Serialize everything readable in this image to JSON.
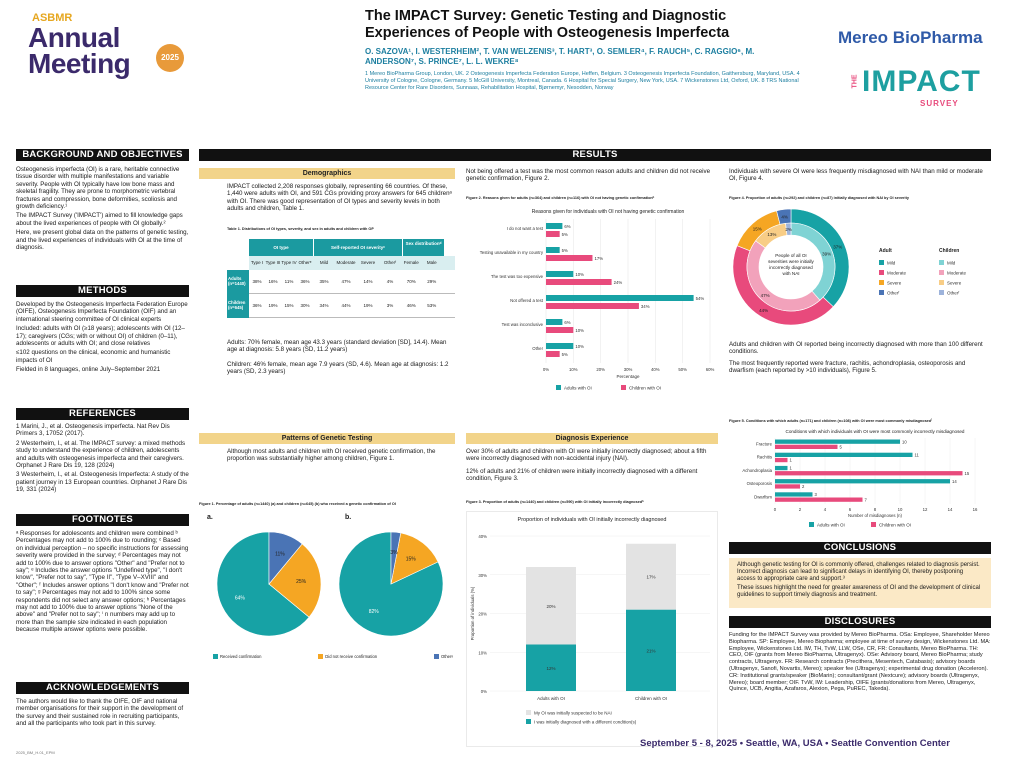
{
  "logo": {
    "org": "ASBMR",
    "line1": "Annual",
    "line2": "Meeting",
    "year": "2025"
  },
  "header": {
    "title_line1": "The IMPACT Survey: Genetic Testing and Diagnostic",
    "title_line2": "Experiences of People with Osteogenesis Imperfecta",
    "authors_line1": "O. SAZOVA¹, I. WESTERHEIM², T. VAN WELZENIS³, T. HART³, O. SEMLER⁴, F. RAUCH⁵, C. RAGGIO⁶, M.",
    "authors_line2": "ANDERSON⁷, S. PRINCE⁷, L. L. WEKRE⁸",
    "affiliations": "1 Mereo BioPharma Group, London, UK. 2 Osteogenesis Imperfecta Federation Europe, Heffen, Belgium. 3 Osteogenesis Imperfecta Foundation, Gaithersburg, Maryland, USA. 4 University of Cologne, Cologne, Germany. 5 McGill University, Montreal, Canada. 6 Hospital for Special Surgery, New York, USA. 7 Wickenstones Ltd, Oxford, UK. 8 TRS National Resource Center for Rare Disorders, Sunnaas, Rehabilitation Hospital, Bjørnemyr, Nesodden, Norway"
  },
  "brand": {
    "company": "Mereo BioPharma",
    "the": "THE",
    "impact": "IMPACT",
    "survey": "SURVEY"
  },
  "col1": {
    "bg_title": "BACKGROUND AND OBJECTIVES",
    "bg_p1": "Osteogenesis imperfecta (OI) is a rare, heritable connective tissue disorder with multiple manifestations and variable severity. People with OI typically have low bone mass and skeletal fragility. They are prone to morphometric vertebral fractures and compression, bone deformities, scoliosis and growth deficiency.¹",
    "bg_p2": "The IMPACT Survey ('IMPACT') aimed to fill knowledge gaps about the lived experiences of people with OI globally.²",
    "bg_p3": "Here, we present global data on the patterns of genetic testing, and the lived experiences of individuals with OI at the time of diagnosis.",
    "methods_title": "METHODS",
    "m_p1": "Developed by the Osteogenesis Imperfecta Federation Europe (OIFE), Osteogenesis Imperfecta Foundation (OIF) and an international steering committee of OI clinical experts",
    "m_p2": "Included: adults with OI (≥18 years); adolescents with OI (12–17); caregivers (CGs; with or without OI) of children (0–11), adolescents or adults with OI; and close relatives",
    "m_p3": "≤102 questions on the clinical, economic and humanistic impacts of OI",
    "m_p4": "Fielded in 8 languages, online July–September 2021",
    "ref_title": "REFERENCES",
    "ref1": "1 Marini, J., et al. Osteogenesis imperfecta. Nat Rev Dis Primers 3, 17052 (2017).",
    "ref2": "2 Westerheim, I., et al. The IMPACT survey: a mixed methods study to understand the experience of children, adolescents and adults with osteogenesis imperfecta and their caregivers. Orphanet J Rare Dis 19, 128 (2024)",
    "ref3": "3 Westerheim, I., et al. Osteogenesis Imperfecta: A study of the patient journey in 13 European countries. Orphanet J Rare Dis 19, 331 (2024)",
    "fn_title": "FOOTNOTES",
    "fn_text": "ᵃ Responses for adolescents and children were combined ᵇ Percentages may not add to 100% due to rounding; ᶜ Based on individual perception – no specific instructions for assessing severity were provided in the survey; ᵈ Percentages may not add to 100% due to answer options \"Other\" and \"Prefer not to say\"; ᵉ Includes the answer options \"Undefined type\", \"I don't know\", \"Prefer not to say\", \"Type II\", \"Type V–XVIII\" and \"Other\"; ᶠ Includes answer options \"I don't know and \"Prefer not to say\"; ᵍ Percentages may not add to 100% since some respondents did not select any answer options; ʰ Percentages may not add to 100% due to answer options \"None of the above\" and \"Prefer not to say\"; ⁱ n numbers may add up to more than the sample size indicated in each population because multiple answer options were possible.",
    "ack_title": "ACKNOWLEDGEMENTS",
    "ack_text": "The authors would like to thank the OIFE, OIF and national member organisations for their support in the development of the survey and their sustained role in recruiting participants, and all the participants who took part in this survey."
  },
  "results_title": "RESULTS",
  "demo": {
    "title": "Demographics",
    "p1": "IMPACT collected 2,208 responses globally, representing 66 countries. Of these, 1,440 were adults with OI, and 591 CGs providing proxy answers for 645 childrenᵃ with OI. There was good representation of OI types and severity levels in both adults and children, Table 1.",
    "table_caption": "Table 1. Distributions of OI types, severity, and sex in adults and children with OIᵇ",
    "group_headers": [
      "OI type",
      "Self-reported OI severityᶜ",
      "Sex distributionᵈ"
    ],
    "sub_headers": [
      "Type I",
      "Type III",
      "Type IV",
      "Otherᵉ",
      "Mild",
      "Moderate",
      "Severe",
      "Otherᶠ",
      "Female",
      "Male"
    ],
    "rows": [
      {
        "label": "Adults (n=1440)",
        "values": [
          "38%",
          "16%",
          "11%",
          "36%",
          "35%",
          "47%",
          "14%",
          "4%",
          "70%",
          "29%"
        ]
      },
      {
        "label": "Children (n=645)",
        "values": [
          "36%",
          "19%",
          "15%",
          "30%",
          "34%",
          "44%",
          "19%",
          "3%",
          "46%",
          "53%"
        ]
      }
    ],
    "p2": "Adults: 70% female, mean age 43.3 years (standard deviation [SD], 14.4). Mean age at diagnosis: 5.8 years (SD, 11.2 years)",
    "p3": "Children: 46% female, mean age 7.9 years (SD, 4.6). Mean age at diagnosis: 1.2 years (SD, 2.3 years)"
  },
  "patterns": {
    "title": "Patterns of Genetic Testing",
    "p1": "Although most adults and children with OI received genetic confirmation, the proportion was substantially higher among children, Figure 1.",
    "fig_caption": "Figure 1. Percentage of adults (n=1440) (a) and children (n=645) (b) who received a genetic confirmation of OI",
    "label_a": "a.",
    "label_b": "b.",
    "legend": [
      "Received confirmation",
      "Did not receive confirmation",
      "Otherᵍ"
    ]
  },
  "fig2": {
    "intro": "Not being offered a test was the most common reason adults and children did not receive genetic confirmation, Figure 2.",
    "caption": "Figure 2. Reasons given for adults (n=364) and children (n=116) with OI not having genetic confirmationʰ",
    "legend": [
      "Adults with OI",
      "Children with OI"
    ]
  },
  "diag": {
    "title": "Diagnosis Experience",
    "p1": "Over 30% of adults and children with OI were initially incorrectly diagnosed; about a fifth were incorrectly diagnosed with non-accidental injury (NAI).",
    "p2": "12% of adults and 21% of children were initially incorrectly diagnosed with a different condition, Figure 3.",
    "fig_caption": "Figure 3. Proportion of adults (n=1440) and children (n=590) with OI initially incorrectly diagnosedʰ",
    "legend": [
      "My OI was initially suspected to be NAI",
      "I was initially diagnosed with a different condition(s)"
    ]
  },
  "fig4": {
    "intro": "Individuals with severe OI were less frequently misdiagnosed with NAI than mild or moderate OI, Figure 4.",
    "caption": "Figure 4. Proportion of adults (n=292) and children (n=87) initially diagnosed with NAI by OI severity",
    "center": "People of all OI severities were initially incorrectly diagnosed with NAI",
    "adult_head": "Adult",
    "child_head": "Children",
    "legend": [
      "Mild",
      "Moderate",
      "Severe",
      "Otherᶠ"
    ]
  },
  "fig5": {
    "p1": "Adults and children with OI reported being incorrectly diagnosed with more than 100 different conditions.",
    "p2": "The most frequently reported were fracture, rachitis, achondroplasia, osteoporosis and dwarfism (each reported by >10 individuals), Figure 5.",
    "caption": "Figure 5. Conditions with which adults (n=171) and children (n=108) with OI were most commonly misdiagnosedⁱ",
    "legend": [
      "Adults with OI",
      "Children with OI"
    ]
  },
  "conclusions": {
    "title": "CONCLUSIONS",
    "p1": "Although genetic testing for OI is commonly offered, challenges related to diagnosis persist. Incorrect diagnosis can lead to significant delays in identifying OI, thereby postponing access to appropriate care and support.³",
    "p2": "These issues highlight the need for greater awareness of OI and the development of clinical guidelines to support timely diagnosis and treatment."
  },
  "disclosures": {
    "title": "DISCLOSURES",
    "text": "Funding for the IMPACT Survey was provided by Mereo BioPharma. OSa: Employee, Shareholder Mereo Biopharma. SP: Employee, Mereo Biopharma; employee at time of survey design, Wickenstones Ltd. MA: Employee, Wickenstones Ltd. IW, TH, TvW, LLW, OSe, CR, FR: Consultants, Mereo BioPharma. TH: CEO, OIF (grants from Mereo BioPharma, Ultragenyx). OSe: Advisory board, Mereo BioPharma; study contracts, Ultragenyx. FR: Research contracts (Precithera, Mesentech, Catabasis); advisory boards (Ultragenyx, Sanofi, Novartis, Mereo); speaker fee (Ultragenyx); experimental drug donation (Acceleron). CR: Institutional grants/speaker (BioMarin); consultant/grant (Nextcure); advisory boards (Ultragenyx, Mereo); board member; OIF. TvW, IW: Leadership, OIFE (grants/donations from Mereo, Ultragenyx, Quince, UCB, Angitia, Azafaros, Alexion, Pega, PuREC, Takeda)."
  },
  "footer": {
    "date": "September 5 - 8, 2025",
    "city": "Seattle, WA, USA",
    "venue": "Seattle Convention Center",
    "code": "2025_BM_H.01_EPM"
  },
  "colors": {
    "teal": "#17a2a5",
    "pink": "#e84a7c",
    "orange": "#f5a623",
    "blue": "#4a74b5",
    "grey": "#e3e3e3",
    "gold": "#f2d48a"
  },
  "chart_data": [
    {
      "type": "pie",
      "id": "fig1a",
      "title": "a.",
      "slices": [
        {
          "label": "Received confirmation",
          "value": 64
        },
        {
          "label": "Did not receive confirmation",
          "value": 25
        },
        {
          "label": "Other",
          "value": 11
        }
      ]
    },
    {
      "type": "pie",
      "id": "fig1b",
      "title": "b.",
      "slices": [
        {
          "label": "Received confirmation",
          "value": 82
        },
        {
          "label": "Did not receive confirmation",
          "value": 15
        },
        {
          "label": "Other",
          "value": 3
        }
      ]
    },
    {
      "type": "bar",
      "id": "fig2",
      "title": "Reasons given for individuals with OI not having genetic confirmation",
      "orientation": "horizontal",
      "xlabel": "Percentage",
      "categories": [
        "I do not want a test",
        "Testing unavailable in my country",
        "The test was too expensive",
        "Not offered a test",
        "Test was inconclusive",
        "Other"
      ],
      "series": [
        {
          "name": "Adults with OI",
          "values": [
            6,
            5,
            10,
            54,
            6,
            10
          ]
        },
        {
          "name": "Children with OI",
          "values": [
            5,
            17,
            24,
            34,
            10,
            5
          ]
        }
      ],
      "xlim": [
        0,
        60
      ],
      "xticks": [
        "0%",
        "10%",
        "20%",
        "30%",
        "40%",
        "50%",
        "60%"
      ]
    },
    {
      "type": "bar",
      "id": "fig3",
      "title": "Proportion of individuals with OI initially incorrectly diagnosed",
      "stacked": true,
      "ylabel": "Proportion of individuals (%)",
      "categories": [
        "Adults with OI",
        "Children with OI"
      ],
      "series": [
        {
          "name": "I was initially diagnosed with a different condition(s)",
          "values": [
            12,
            21
          ]
        },
        {
          "name": "My OI was initially suspected to be NAI",
          "values": [
            20,
            17
          ]
        }
      ],
      "ylim": [
        0,
        40
      ],
      "yticks": [
        "0%",
        "10%",
        "20%",
        "30%",
        "40%"
      ]
    },
    {
      "type": "pie",
      "id": "fig4",
      "subtype": "nested-donut",
      "title": "",
      "center": "People of all OI severities were initially incorrectly diagnosed with NAI",
      "series": [
        {
          "name": "Adult",
          "values": [
            {
              "label": "Mild",
              "value": 37
            },
            {
              "label": "Moderate",
              "value": 44
            },
            {
              "label": "Severe",
              "value": 15
            },
            {
              "label": "Other",
              "value": 4
            }
          ]
        },
        {
          "name": "Children",
          "values": [
            {
              "label": "Mild",
              "value": 39
            },
            {
              "label": "Moderate",
              "value": 47
            },
            {
              "label": "Severe",
              "value": 13
            },
            {
              "label": "Other",
              "value": 2
            }
          ]
        }
      ]
    },
    {
      "type": "bar",
      "id": "fig5",
      "title": "Conditions with which individuals with OI were most commonly incorrectly misdiagnosed",
      "orientation": "horizontal",
      "xlabel": "Number of misdiagnoses (n)",
      "categories": [
        "Fracture",
        "Rachitis",
        "Achondroplasia",
        "Osteoporosis",
        "Dwarfism"
      ],
      "series": [
        {
          "name": "Adults with OI",
          "values": [
            10,
            11,
            1,
            14,
            3
          ]
        },
        {
          "name": "Children with OI",
          "values": [
            5,
            1,
            15,
            2,
            7
          ]
        }
      ],
      "xlim": [
        0,
        16
      ],
      "xticks": [
        "0",
        "2",
        "4",
        "6",
        "8",
        "10",
        "12",
        "14",
        "16"
      ]
    }
  ]
}
